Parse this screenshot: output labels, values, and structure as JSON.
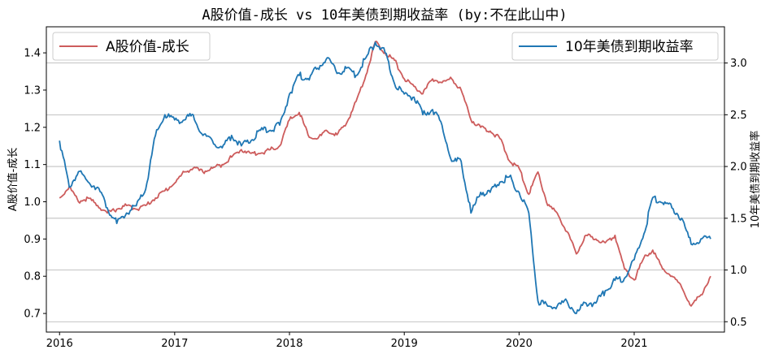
{
  "chart_data": {
    "type": "line",
    "title": "A股价值-成长 vs 10年美债到期收益率 (by:不在此山中)",
    "xlabel": "",
    "x_ticks": [
      "2016",
      "2017",
      "2018",
      "2019",
      "2020",
      "2021"
    ],
    "x_range": [
      "2016-01-01",
      "2021-09-01"
    ],
    "left_axis": {
      "label": "A股价值-成长",
      "ylim": [
        0.65,
        1.47
      ],
      "ticks": [
        "0.7",
        "0.8",
        "0.9",
        "1.0",
        "1.1",
        "1.2",
        "1.3",
        "1.4"
      ]
    },
    "right_axis": {
      "label": "10年美债到期收益率",
      "ylim": [
        0.4,
        3.35
      ],
      "ticks": [
        "0.5",
        "1.0",
        "1.5",
        "2.0",
        "2.5",
        "3.0"
      ],
      "grid": true
    },
    "series": [
      {
        "name": "A股价值-成长",
        "axis": "left",
        "color": "#cd5c5c",
        "points": [
          [
            "2016-01-01",
            1.01
          ],
          [
            "2016-02-01",
            1.04
          ],
          [
            "2016-03-01",
            1.0
          ],
          [
            "2016-04-01",
            1.01
          ],
          [
            "2016-05-01",
            0.99
          ],
          [
            "2016-06-01",
            0.97
          ],
          [
            "2016-07-01",
            0.98
          ],
          [
            "2016-08-01",
            0.99
          ],
          [
            "2016-09-01",
            0.98
          ],
          [
            "2016-10-01",
            0.99
          ],
          [
            "2016-11-01",
            1.01
          ],
          [
            "2016-12-01",
            1.03
          ],
          [
            "2017-01-01",
            1.05
          ],
          [
            "2017-02-01",
            1.08
          ],
          [
            "2017-03-01",
            1.09
          ],
          [
            "2017-04-01",
            1.08
          ],
          [
            "2017-05-01",
            1.09
          ],
          [
            "2017-06-01",
            1.1
          ],
          [
            "2017-07-01",
            1.12
          ],
          [
            "2017-08-01",
            1.14
          ],
          [
            "2017-09-01",
            1.13
          ],
          [
            "2017-10-01",
            1.13
          ],
          [
            "2017-11-01",
            1.14
          ],
          [
            "2017-12-01",
            1.15
          ],
          [
            "2018-01-01",
            1.22
          ],
          [
            "2018-02-01",
            1.24
          ],
          [
            "2018-03-01",
            1.18
          ],
          [
            "2018-04-01",
            1.17
          ],
          [
            "2018-05-01",
            1.19
          ],
          [
            "2018-06-01",
            1.18
          ],
          [
            "2018-07-01",
            1.21
          ],
          [
            "2018-08-01",
            1.27
          ],
          [
            "2018-09-01",
            1.34
          ],
          [
            "2018-10-01",
            1.43
          ],
          [
            "2018-11-01",
            1.4
          ],
          [
            "2018-12-01",
            1.38
          ],
          [
            "2019-01-01",
            1.33
          ],
          [
            "2019-02-01",
            1.31
          ],
          [
            "2019-03-01",
            1.29
          ],
          [
            "2019-04-01",
            1.33
          ],
          [
            "2019-05-01",
            1.32
          ],
          [
            "2019-06-01",
            1.33
          ],
          [
            "2019-07-01",
            1.3
          ],
          [
            "2019-08-01",
            1.22
          ],
          [
            "2019-09-01",
            1.2
          ],
          [
            "2019-10-01",
            1.19
          ],
          [
            "2019-11-01",
            1.17
          ],
          [
            "2019-12-01",
            1.11
          ],
          [
            "2020-01-01",
            1.09
          ],
          [
            "2020-02-01",
            1.02
          ],
          [
            "2020-03-01",
            1.08
          ],
          [
            "2020-04-01",
            0.99
          ],
          [
            "2020-05-01",
            0.97
          ],
          [
            "2020-06-01",
            0.92
          ],
          [
            "2020-07-01",
            0.86
          ],
          [
            "2020-08-01",
            0.91
          ],
          [
            "2020-09-01",
            0.9
          ],
          [
            "2020-10-01",
            0.89
          ],
          [
            "2020-11-01",
            0.91
          ],
          [
            "2020-12-01",
            0.82
          ],
          [
            "2021-01-01",
            0.79
          ],
          [
            "2021-02-01",
            0.85
          ],
          [
            "2021-03-01",
            0.87
          ],
          [
            "2021-04-01",
            0.82
          ],
          [
            "2021-05-01",
            0.8
          ],
          [
            "2021-06-01",
            0.77
          ],
          [
            "2021-07-01",
            0.72
          ],
          [
            "2021-08-01",
            0.75
          ],
          [
            "2021-09-01",
            0.8
          ]
        ]
      },
      {
        "name": "10年美债到期收益率",
        "axis": "right",
        "color": "#1f77b4",
        "points": [
          [
            "2016-01-01",
            2.25
          ],
          [
            "2016-02-01",
            1.8
          ],
          [
            "2016-03-01",
            1.95
          ],
          [
            "2016-04-01",
            1.85
          ],
          [
            "2016-05-01",
            1.8
          ],
          [
            "2016-06-01",
            1.6
          ],
          [
            "2016-07-01",
            1.45
          ],
          [
            "2016-08-01",
            1.55
          ],
          [
            "2016-09-01",
            1.62
          ],
          [
            "2016-10-01",
            1.78
          ],
          [
            "2016-11-01",
            2.3
          ],
          [
            "2016-12-01",
            2.5
          ],
          [
            "2017-01-01",
            2.45
          ],
          [
            "2017-02-01",
            2.45
          ],
          [
            "2017-03-01",
            2.5
          ],
          [
            "2017-04-01",
            2.3
          ],
          [
            "2017-05-01",
            2.25
          ],
          [
            "2017-06-01",
            2.18
          ],
          [
            "2017-07-01",
            2.3
          ],
          [
            "2017-08-01",
            2.2
          ],
          [
            "2017-09-01",
            2.25
          ],
          [
            "2017-10-01",
            2.35
          ],
          [
            "2017-11-01",
            2.35
          ],
          [
            "2017-12-01",
            2.4
          ],
          [
            "2018-01-01",
            2.7
          ],
          [
            "2018-02-01",
            2.88
          ],
          [
            "2018-03-01",
            2.85
          ],
          [
            "2018-04-01",
            2.95
          ],
          [
            "2018-05-01",
            3.05
          ],
          [
            "2018-06-01",
            2.9
          ],
          [
            "2018-07-01",
            2.95
          ],
          [
            "2018-08-01",
            2.88
          ],
          [
            "2018-09-01",
            3.05
          ],
          [
            "2018-10-01",
            3.2
          ],
          [
            "2018-11-01",
            3.1
          ],
          [
            "2018-12-01",
            2.8
          ],
          [
            "2019-01-01",
            2.7
          ],
          [
            "2019-02-01",
            2.67
          ],
          [
            "2019-03-01",
            2.5
          ],
          [
            "2019-04-01",
            2.55
          ],
          [
            "2019-05-01",
            2.4
          ],
          [
            "2019-06-01",
            2.05
          ],
          [
            "2019-07-01",
            2.05
          ],
          [
            "2019-08-01",
            1.55
          ],
          [
            "2019-09-01",
            1.75
          ],
          [
            "2019-10-01",
            1.75
          ],
          [
            "2019-11-01",
            1.85
          ],
          [
            "2019-12-01",
            1.9
          ],
          [
            "2020-01-01",
            1.75
          ],
          [
            "2020-02-01",
            1.55
          ],
          [
            "2020-03-01",
            0.7
          ],
          [
            "2020-04-01",
            0.65
          ],
          [
            "2020-05-01",
            0.65
          ],
          [
            "2020-06-01",
            0.7
          ],
          [
            "2020-07-01",
            0.58
          ],
          [
            "2020-08-01",
            0.68
          ],
          [
            "2020-09-01",
            0.68
          ],
          [
            "2020-10-01",
            0.8
          ],
          [
            "2020-11-01",
            0.9
          ],
          [
            "2020-12-01",
            0.92
          ],
          [
            "2021-01-01",
            1.1
          ],
          [
            "2021-02-01",
            1.35
          ],
          [
            "2021-03-01",
            1.7
          ],
          [
            "2021-04-01",
            1.65
          ],
          [
            "2021-05-01",
            1.6
          ],
          [
            "2021-06-01",
            1.5
          ],
          [
            "2021-07-01",
            1.25
          ],
          [
            "2021-08-01",
            1.3
          ],
          [
            "2021-09-01",
            1.3
          ]
        ]
      }
    ],
    "legend_left": {
      "label": "A股价值-成长",
      "placement": "top-left"
    },
    "legend_right": {
      "label": "10年美债到期收益率",
      "placement": "top-right"
    }
  }
}
